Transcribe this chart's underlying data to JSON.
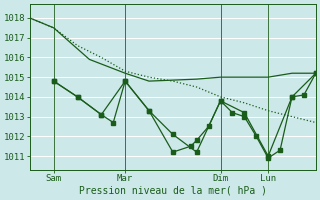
{
  "background_color": "#cce8e8",
  "grid_color": "#ffffff",
  "line_color": "#1a5c1a",
  "xlabel": "Pression niveau de la mer( hPa )",
  "xtick_labels": [
    "Sam",
    "Mar",
    "Dim",
    "Lun"
  ],
  "ytick_values": [
    1011,
    1012,
    1013,
    1014,
    1015,
    1016,
    1017,
    1018
  ],
  "ylim": [
    1010.3,
    1018.7
  ],
  "xlim": [
    0,
    96
  ],
  "sam_x": 8,
  "mar_x": 32,
  "dim_x": 64,
  "lun_x": 80,
  "line1_x": [
    0,
    8,
    16,
    24,
    32,
    40,
    48,
    56,
    64,
    72,
    80,
    88,
    96
  ],
  "line1_y": [
    1018.0,
    1017.5,
    1016.6,
    1016.0,
    1015.3,
    1015.0,
    1014.8,
    1014.5,
    1014.0,
    1013.7,
    1013.3,
    1013.0,
    1012.7
  ],
  "line2_x": [
    0,
    8,
    20,
    32,
    40,
    48,
    56,
    64,
    72,
    80,
    88,
    96
  ],
  "line2_y": [
    1018.0,
    1017.5,
    1015.9,
    1015.2,
    1014.8,
    1014.85,
    1014.9,
    1015.0,
    1015.0,
    1015.0,
    1015.2,
    1015.2
  ],
  "line3_x": [
    8,
    16,
    24,
    32,
    40,
    48,
    56,
    64,
    72,
    80,
    88,
    96
  ],
  "line3_y": [
    1014.8,
    1014.0,
    1013.1,
    1014.8,
    1013.3,
    1012.1,
    1011.2,
    1013.8,
    1013.2,
    1011.0,
    1014.0,
    1015.2
  ],
  "line4_x": [
    8,
    16,
    24,
    28,
    32,
    40,
    48,
    54,
    56,
    60,
    64,
    68,
    72,
    76,
    80,
    84,
    88,
    92,
    96
  ],
  "line4_y": [
    1014.8,
    1014.0,
    1013.1,
    1012.7,
    1014.8,
    1013.3,
    1011.2,
    1011.5,
    1011.8,
    1012.5,
    1013.8,
    1013.2,
    1013.0,
    1012.0,
    1010.9,
    1011.3,
    1014.0,
    1014.1,
    1015.2
  ],
  "marker_size": 2.5,
  "linewidth": 0.9
}
